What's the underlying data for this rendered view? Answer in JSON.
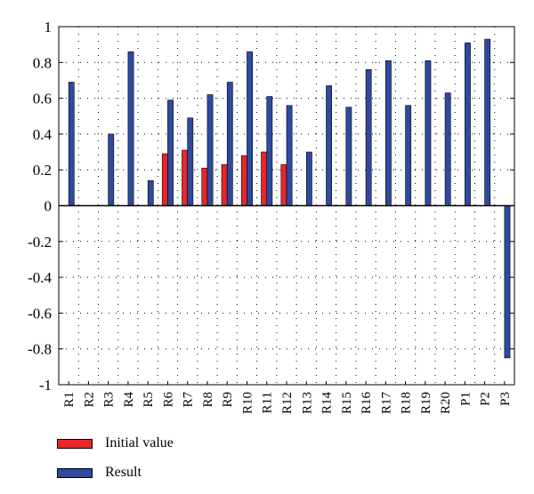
{
  "chart_data": {
    "type": "bar",
    "title": "",
    "xlabel": "",
    "ylabel": "",
    "ylim": [
      -1,
      1
    ],
    "yticks": [
      1,
      0.8,
      0.6,
      0.4,
      0.2,
      0,
      -0.2,
      -0.4,
      -0.6,
      -0.8,
      -1
    ],
    "ytick_labels": [
      "1",
      "0.8",
      "0.6",
      "0.4",
      "0.2",
      "0",
      "-0.2",
      "-0.4",
      "-0.6",
      "-0.8",
      "-1"
    ],
    "grid": "dotted",
    "categories": [
      "R1",
      "R2",
      "R3",
      "R4",
      "R5",
      "R6",
      "R7",
      "R8",
      "R9",
      "R10",
      "R11",
      "R12",
      "R13",
      "R14",
      "R15",
      "R16",
      "R17",
      "R18",
      "R19",
      "R20",
      "P1",
      "P2",
      "P3"
    ],
    "series": [
      {
        "name": "Initial value",
        "color": "#e8262a",
        "values": [
          0,
          0,
          0,
          0,
          0,
          0.29,
          0.31,
          0.21,
          0.23,
          0.28,
          0.3,
          0.23,
          0,
          0,
          0,
          0,
          0,
          0,
          0,
          0,
          0,
          0,
          0
        ]
      },
      {
        "name": "Result",
        "color": "#2e4a9e",
        "values": [
          0.69,
          0,
          0.4,
          0.86,
          0.14,
          0.59,
          0.49,
          0.62,
          0.69,
          0.86,
          0.61,
          0.56,
          0.3,
          0.67,
          0.55,
          0.76,
          0.81,
          0.56,
          0.81,
          0.63,
          0.91,
          0.93,
          -0.85
        ]
      }
    ],
    "legend_position": "bottom-left"
  }
}
